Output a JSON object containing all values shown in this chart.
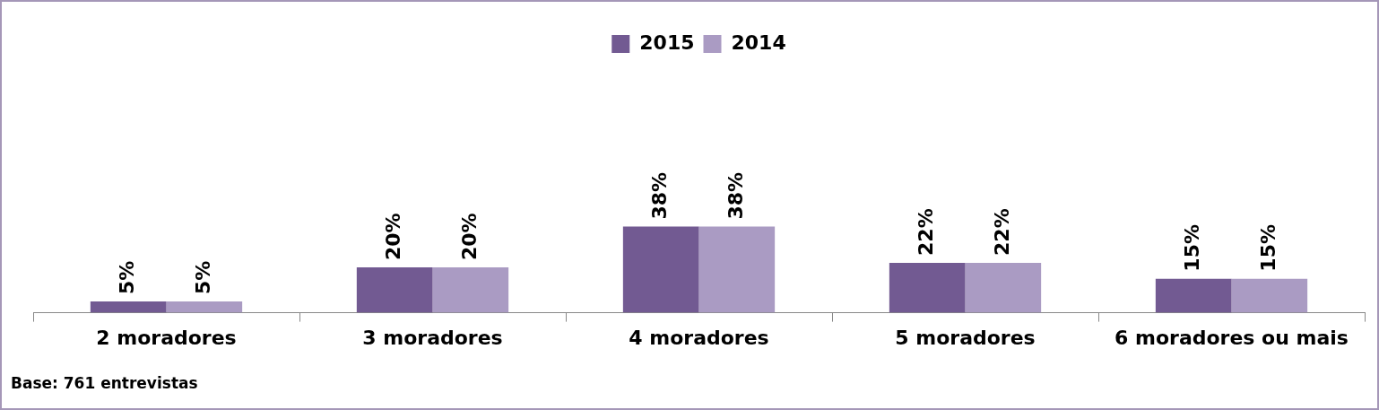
{
  "chart_data": {
    "type": "bar",
    "categories": [
      "2 moradores",
      "3 moradores",
      "4 moradores",
      "5 moradores",
      "6 moradores ou mais"
    ],
    "series": [
      {
        "name": "2015",
        "color": "#725a92",
        "values": [
          5,
          20,
          38,
          22,
          15
        ],
        "value_labels": [
          "5%",
          "20%",
          "38%",
          "22%",
          "15%"
        ]
      },
      {
        "name": "2014",
        "color": "#aa9bc3",
        "values": [
          5,
          20,
          38,
          22,
          15
        ],
        "value_labels": [
          "5%",
          "20%",
          "38%",
          "22%",
          "15%"
        ]
      }
    ],
    "legend": "top",
    "annotations": [
      "Base: 761 entrevistas"
    ]
  }
}
